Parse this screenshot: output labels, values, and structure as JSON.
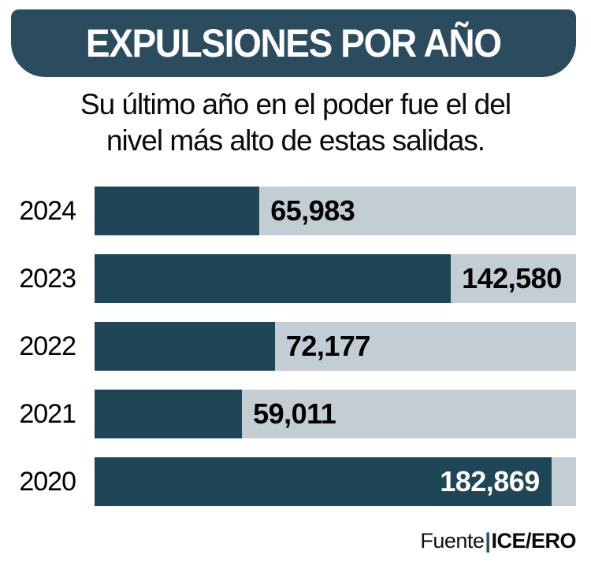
{
  "header": {
    "title": "EXPULSIONES POR AÑO",
    "background_color": "#2A4C5E",
    "text_color": "#FFFFFF"
  },
  "subtitle": {
    "line1": "Su último año en el poder fue el del",
    "line2": "nivel más alto de estas salidas."
  },
  "chart_data": {
    "type": "bar",
    "orientation": "horizontal",
    "title": "EXPULSIONES POR AÑO",
    "categories": [
      "2024",
      "2023",
      "2022",
      "2021",
      "2020"
    ],
    "values": [
      65983,
      142580,
      72177,
      59011,
      182869
    ],
    "value_labels": [
      "65,983",
      "142,580",
      "72,177",
      "59,011",
      "182,869"
    ],
    "label_placement": [
      "outside",
      "outside",
      "outside",
      "outside",
      "inside"
    ],
    "xlim": [
      0,
      192700
    ],
    "bar_color": "#1F4656",
    "track_color": "#C2CDD4",
    "grid": false,
    "legend": false
  },
  "source": {
    "prefix": "Fuente",
    "separator": "|",
    "name": "ICE/ERO",
    "separator_color": "#2A4C5E"
  }
}
